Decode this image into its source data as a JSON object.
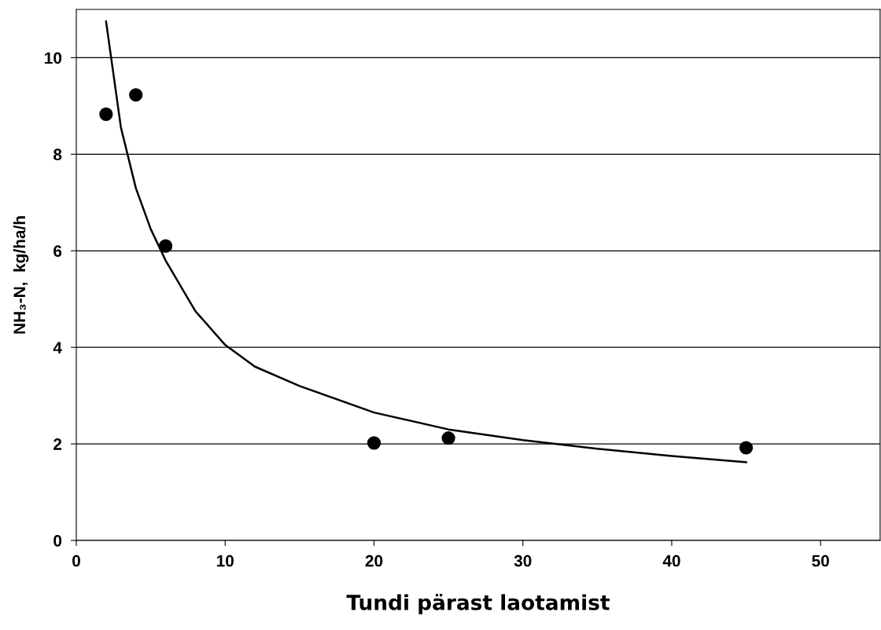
{
  "chart_data": {
    "type": "scatter",
    "xlabel": "Tundi pärast laotamist",
    "ylabel": "NH₃-N,  kg/ha/h",
    "xlim": [
      0,
      54
    ],
    "ylim": [
      0,
      11
    ],
    "xticks": [
      0,
      10,
      20,
      30,
      40,
      50
    ],
    "yticks": [
      0,
      2,
      4,
      6,
      8,
      10
    ],
    "grid": "y",
    "marker": "circle",
    "series": [
      {
        "color": "#000000",
        "x": [
          2,
          4,
          6,
          20,
          25,
          45
        ],
        "values": [
          8.83,
          9.23,
          6.1,
          2.02,
          2.12,
          1.92
        ]
      },
      {
        "type": "line",
        "color": "#000000",
        "line_style": "solid",
        "marker": "none",
        "x": [
          2,
          3,
          4,
          5,
          6,
          8,
          10,
          12,
          15,
          20,
          25,
          30,
          35,
          40,
          45
        ],
        "values": [
          10.75,
          8.55,
          7.3,
          6.45,
          5.8,
          4.75,
          4.05,
          3.6,
          3.2,
          2.65,
          2.3,
          2.08,
          1.9,
          1.75,
          1.62
        ]
      }
    ]
  }
}
